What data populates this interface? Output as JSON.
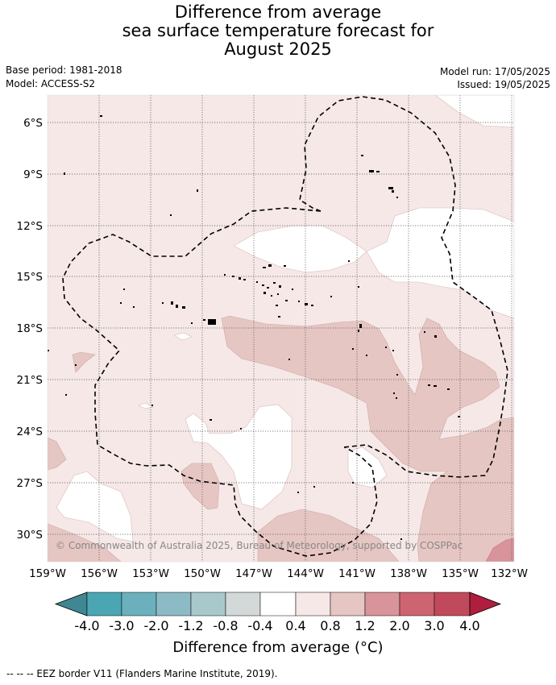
{
  "title": {
    "line1": "Difference from average",
    "line2": "sea surface temperature forecast for",
    "line3": "August 2025"
  },
  "meta": {
    "base_period": "Base period: 1981-2018",
    "model": "Model: ACCESS-S2",
    "model_run": "Model run: 17/05/2025",
    "issued": "Issued: 19/05/2025"
  },
  "map": {
    "lat_labels": [
      "6°S",
      "9°S",
      "12°S",
      "15°S",
      "18°S",
      "21°S",
      "24°S",
      "27°S",
      "30°S"
    ],
    "lon_labels": [
      "159°W",
      "156°W",
      "153°W",
      "150°W",
      "147°W",
      "144°W",
      "141°W",
      "138°W",
      "135°W",
      "132°W"
    ],
    "copyright": "© Commonwealth of Australia 2025, Bureau of Meteorology, supported by COSPPac",
    "colors": {
      "anom_0_4_0_8": "#f5e8e7",
      "anom_0_8_1_2": "#e6c6c3",
      "anom_1_2_2_0": "#d8939b",
      "neutral": "#ffffff",
      "land": "#000000",
      "eez": "#000000"
    }
  },
  "colorbar": {
    "ticks": [
      "-4.0",
      "-3.0",
      "-2.0",
      "-1.2",
      "-0.8",
      "-0.4",
      "0.4",
      "0.8",
      "1.2",
      "2.0",
      "3.0",
      "4.0"
    ],
    "colors": [
      "#3f8792",
      "#4ba6b4",
      "#6cb0bd",
      "#8dbbc5",
      "#a9c8cc",
      "#d3d8d9",
      "#ffffff",
      "#f5e8e7",
      "#e6c6c3",
      "#d8939b",
      "#ce6472",
      "#c04a5c",
      "#b01e3e"
    ],
    "label": "Difference from average (°C)"
  },
  "footnote": "--  --  -- EEZ border V11 (Flanders Marine Institute, 2019)."
}
